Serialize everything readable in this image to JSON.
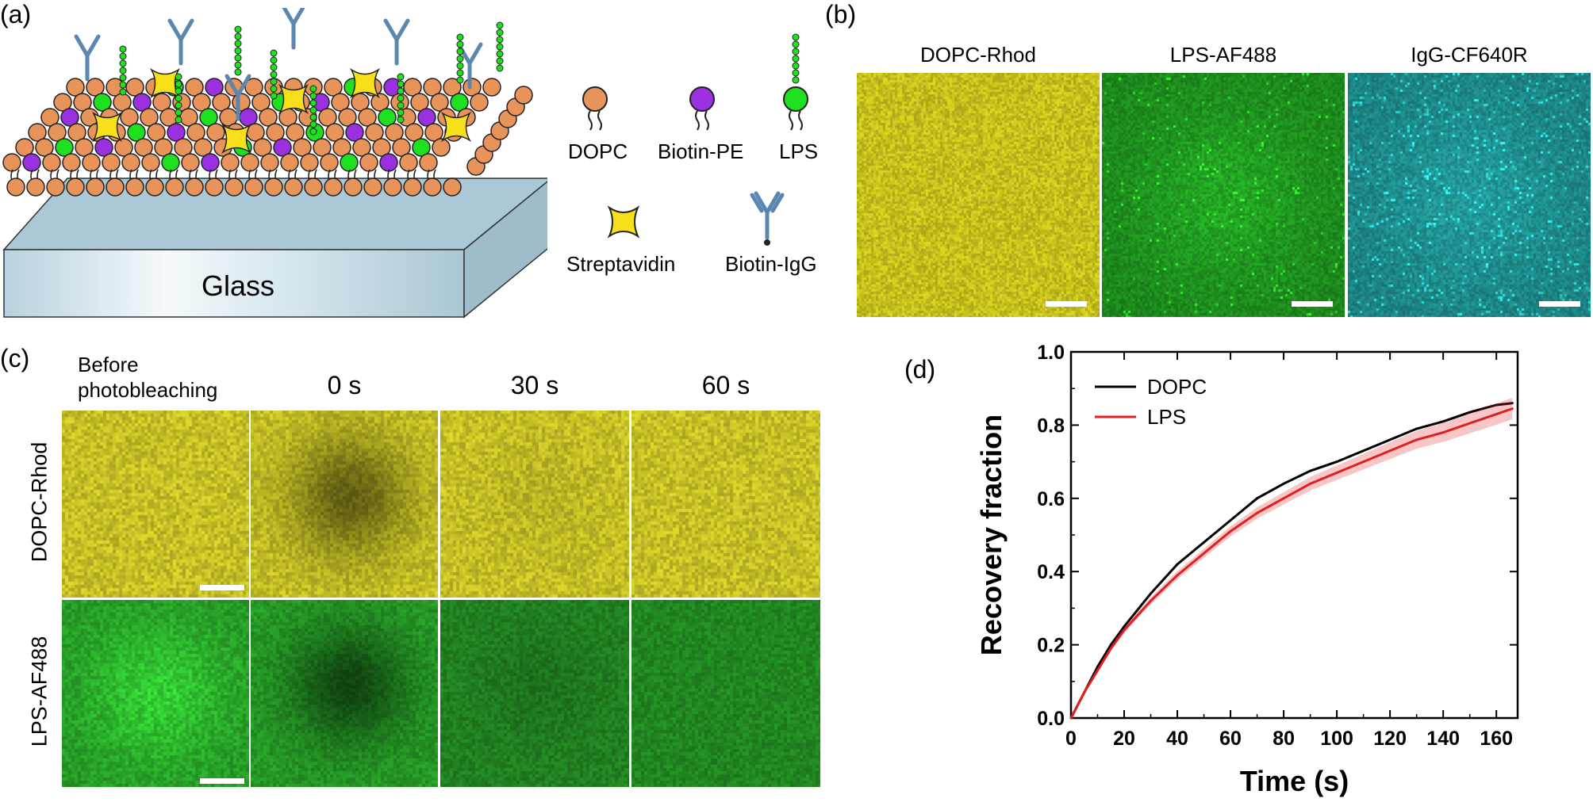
{
  "panels": {
    "a": {
      "label": "(a)",
      "substrate_label": "Glass",
      "legend": [
        {
          "id": "dopc",
          "label": "DOPC"
        },
        {
          "id": "biotin_pe",
          "label": "Biotin-PE"
        },
        {
          "id": "lps",
          "label": "LPS"
        },
        {
          "id": "streptavidin",
          "label": "Streptavidin"
        },
        {
          "id": "biotin_igg",
          "label": "Biotin-IgG"
        }
      ]
    },
    "b": {
      "label": "(b)",
      "images": [
        {
          "title": "DOPC-Rhod",
          "tone": "yellow"
        },
        {
          "title": "LPS-AF488",
          "tone": "green"
        },
        {
          "title": "IgG-CF640R",
          "tone": "cyan"
        }
      ]
    },
    "c": {
      "label": "(c)",
      "columns": [
        {
          "line1": "Before",
          "line2": "photobleaching"
        },
        {
          "line1": "0 s"
        },
        {
          "line1": "30 s"
        },
        {
          "line1": "60 s"
        }
      ],
      "rows": [
        "DOPC-Rhod",
        "LPS-AF488"
      ]
    },
    "d": {
      "label": "(d)"
    }
  },
  "colors": {
    "dopc_head": "#e8935a",
    "biotin_head": "#9b30e0",
    "lps_head": "#1ee01e",
    "streptavidin": "#f7e01a",
    "antibody": "#5a86b0",
    "glass": "#c9dfe8",
    "yellow_tile": "#cfcb1f",
    "green_tile": "#1f8c1f",
    "cyan_tile": "#1f8a8a",
    "dopc_line": "#000000",
    "lps_line": "#e02020"
  },
  "chart_data": {
    "type": "line",
    "title": "",
    "xlabel": "Time (s)",
    "ylabel": "Recovery fraction",
    "xlim": [
      0,
      168
    ],
    "ylim": [
      0,
      1.0
    ],
    "xticks": [
      "0",
      "20",
      "40",
      "60",
      "80",
      "100",
      "120",
      "140",
      "160"
    ],
    "yticks": [
      "0.0",
      "0.2",
      "0.4",
      "0.6",
      "0.8",
      "1.0"
    ],
    "legend_position": "top-left",
    "series": [
      {
        "name": "DOPC",
        "color": "#000000",
        "x": [
          0,
          5,
          10,
          15,
          20,
          30,
          40,
          50,
          60,
          70,
          80,
          90,
          100,
          110,
          120,
          130,
          140,
          150,
          160,
          166
        ],
        "values": [
          0.0,
          0.07,
          0.14,
          0.2,
          0.25,
          0.34,
          0.42,
          0.48,
          0.54,
          0.6,
          0.64,
          0.675,
          0.7,
          0.73,
          0.76,
          0.79,
          0.81,
          0.835,
          0.855,
          0.86
        ]
      },
      {
        "name": "LPS",
        "color": "#e02020",
        "band": 0.025,
        "x": [
          0,
          5,
          10,
          15,
          20,
          30,
          40,
          50,
          60,
          70,
          80,
          90,
          100,
          110,
          120,
          130,
          140,
          150,
          160,
          166
        ],
        "values": [
          0.0,
          0.07,
          0.13,
          0.19,
          0.24,
          0.32,
          0.39,
          0.45,
          0.51,
          0.56,
          0.6,
          0.64,
          0.67,
          0.7,
          0.73,
          0.76,
          0.78,
          0.805,
          0.83,
          0.845
        ]
      }
    ]
  }
}
